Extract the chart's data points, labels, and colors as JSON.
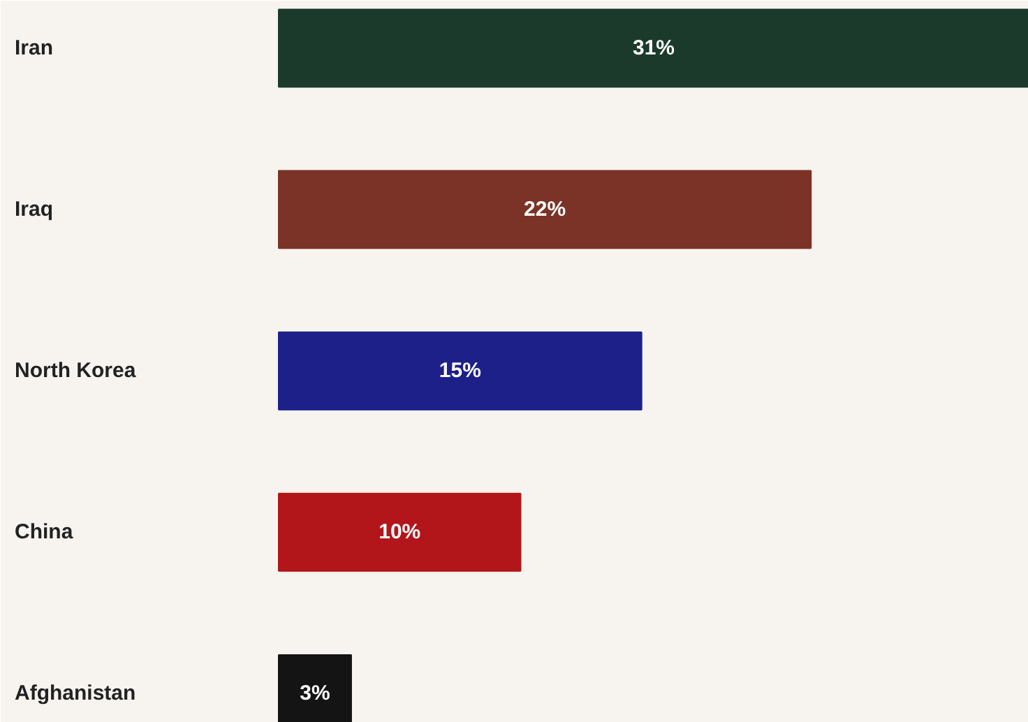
{
  "chart_data": {
    "type": "bar",
    "orientation": "horizontal",
    "categories": [
      "Iran",
      "Iraq",
      "North Korea",
      "China",
      "Afghanistan"
    ],
    "values": [
      31,
      22,
      15,
      10,
      3
    ],
    "colors": [
      "#1b3a2b",
      "#7a3326",
      "#1e208a",
      "#b2161a",
      "#141414"
    ],
    "data_labels": true,
    "value_labels": [
      "31%",
      "22%",
      "15%",
      "10%",
      "3%"
    ]
  }
}
